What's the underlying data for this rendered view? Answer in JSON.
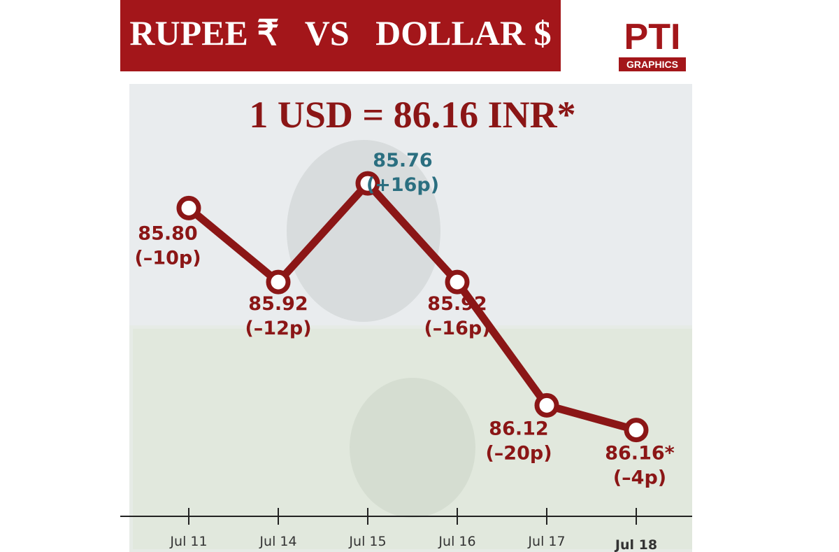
{
  "chart_data": {
    "type": "line",
    "title": "RUPEE ₹   VS   DOLLAR $",
    "subtitle": "1 USD = 86.16 INR*",
    "logo": "PTI",
    "logo_caption": "GRAPHICS",
    "categories": [
      "Jul 11",
      "Jul 14",
      "Jul 15",
      "Jul 16",
      "Jul 17",
      "Jul 18"
    ],
    "values": [
      85.8,
      85.92,
      85.76,
      85.92,
      86.12,
      86.16
    ],
    "value_labels": [
      "85.80",
      "85.92",
      "85.76",
      "85.92",
      "86.12",
      "86.16*"
    ],
    "change_labels": [
      "(–10p)",
      "(–12p)",
      "(+16p)",
      "(–16p)",
      "(–20p)",
      "(–4p)"
    ],
    "value_label_colors": [
      "#8b1616",
      "#8b1616",
      "#2b6f80",
      "#8b1616",
      "#8b1616",
      "#8b1616"
    ],
    "color": "#8b1616",
    "ylim": [
      85.5,
      86.3
    ],
    "y_inverted": true
  }
}
